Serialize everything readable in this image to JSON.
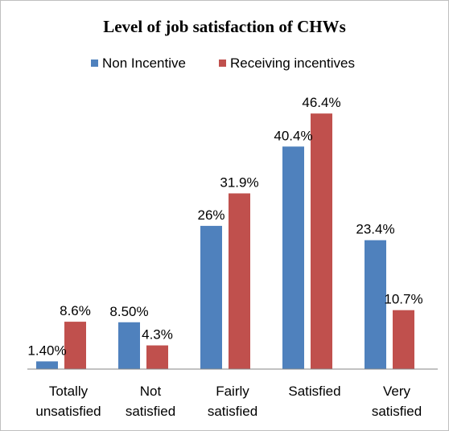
{
  "chart_data": {
    "type": "bar",
    "title": "Level of job satisfaction of CHWs",
    "categories": [
      [
        "Totally",
        "unsatisfied"
      ],
      [
        "Not",
        "satisfied"
      ],
      [
        "Fairly",
        "satisfied"
      ],
      [
        "Satisfied"
      ],
      [
        "Very",
        "satisfied"
      ]
    ],
    "series": [
      {
        "name": "Non Incentive",
        "color": "#4f81bd",
        "values": [
          1.4,
          8.5,
          26,
          40.4,
          23.4
        ],
        "labels": [
          "1.40%",
          "8.50%",
          "26%",
          "40.4%",
          "23.4%"
        ]
      },
      {
        "name": "Receiving incentives",
        "color": "#c0504d",
        "values": [
          8.6,
          4.3,
          31.9,
          46.4,
          10.7
        ],
        "labels": [
          "8.6%",
          "4.3%",
          "31.9%",
          "46.4%",
          "10.7%"
        ]
      }
    ],
    "ylim": [
      0,
      50
    ],
    "grid": false,
    "legend": "top"
  }
}
